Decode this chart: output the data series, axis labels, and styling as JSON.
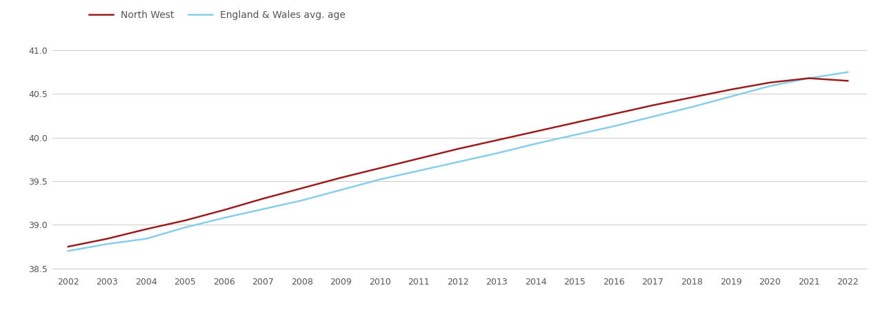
{
  "years": [
    2002,
    2003,
    2004,
    2005,
    2006,
    2007,
    2008,
    2009,
    2010,
    2011,
    2012,
    2013,
    2014,
    2015,
    2016,
    2017,
    2018,
    2019,
    2020,
    2021,
    2022
  ],
  "north_west": [
    38.75,
    38.84,
    38.95,
    39.05,
    39.17,
    39.3,
    39.42,
    39.54,
    39.65,
    39.76,
    39.87,
    39.97,
    40.07,
    40.17,
    40.27,
    40.37,
    40.46,
    40.55,
    40.63,
    40.68,
    40.65
  ],
  "england_wales": [
    38.7,
    38.78,
    38.84,
    38.97,
    39.08,
    39.18,
    39.28,
    39.4,
    39.52,
    39.62,
    39.72,
    39.82,
    39.93,
    40.03,
    40.13,
    40.24,
    40.35,
    40.47,
    40.59,
    40.68,
    40.75
  ],
  "nw_color": "#9b1c1c",
  "ew_color": "#87CEEB",
  "ylim": [
    38.45,
    41.15
  ],
  "yticks": [
    38.5,
    39.0,
    39.5,
    40.0,
    40.5,
    41.0
  ],
  "legend_labels": [
    "North West",
    "England & Wales avg. age"
  ],
  "background_color": "#ffffff",
  "grid_color": "#cccccc",
  "tick_color": "#555555"
}
